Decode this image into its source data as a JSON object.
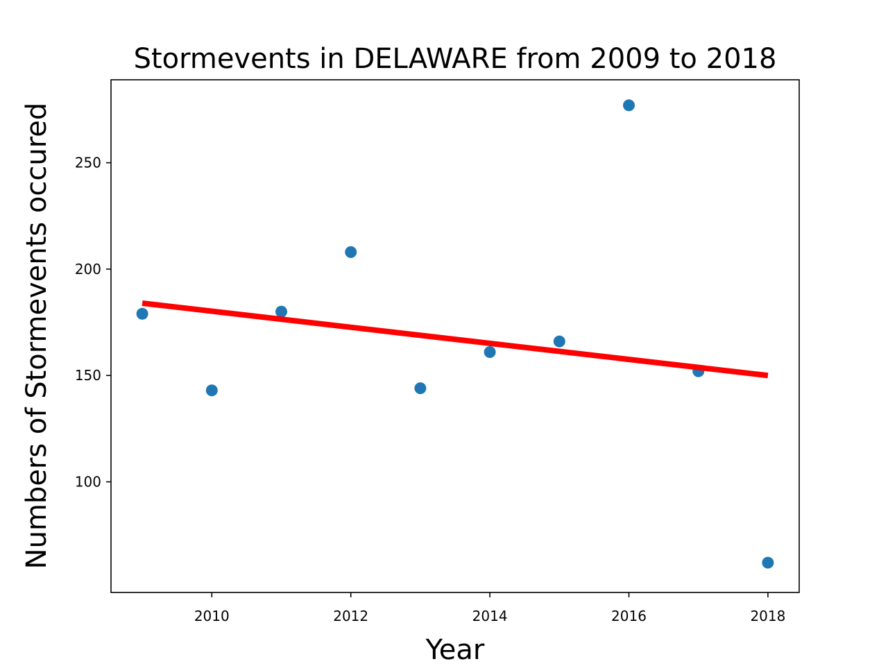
{
  "chart_data": {
    "type": "scatter",
    "title": "Stormevents in DELAWARE from 2009 to 2018",
    "xlabel": "Year",
    "ylabel": "Numbers of Stormevents occured",
    "xlim": [
      2008.55,
      2018.45
    ],
    "ylim": [
      48,
      289
    ],
    "xticks": [
      2010,
      2012,
      2014,
      2016,
      2018
    ],
    "yticks": [
      100,
      150,
      200,
      250
    ],
    "grid": false,
    "legend": "none",
    "series": [
      {
        "x": [
          2009,
          2010,
          2011,
          2012,
          2013,
          2014,
          2015,
          2016,
          2017,
          2018
        ],
        "y": [
          179,
          143,
          180,
          208,
          144,
          161,
          166,
          277,
          152,
          62
        ],
        "color": "#1f77b4"
      }
    ],
    "trendline": {
      "x": [
        2009,
        2018
      ],
      "y": [
        184,
        150
      ],
      "color": "#ff0000"
    }
  }
}
